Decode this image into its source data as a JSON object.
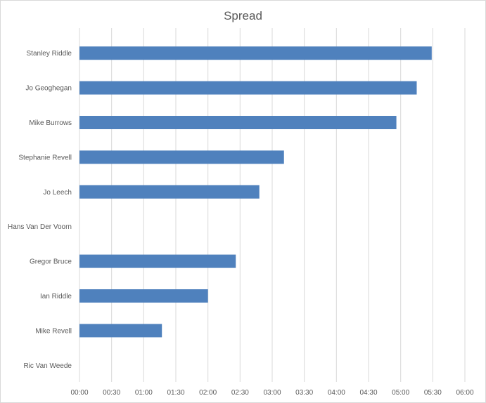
{
  "chart_data": {
    "type": "bar",
    "orientation": "horizontal",
    "title": "Spread",
    "xlabel": "",
    "ylabel": "",
    "categories": [
      "Stanley Riddle",
      "Jo Geoghegan",
      "Mike Burrows",
      "Stephanie Revell",
      "Jo Leech",
      "Hans Van Der  Voorn",
      "Gregor Bruce",
      "Ian Riddle",
      "Mike Revell",
      "Ric Van Weede"
    ],
    "values_minutes": [
      329,
      315,
      296,
      191,
      168,
      0,
      146,
      120,
      77,
      0
    ],
    "xlim_minutes": [
      0,
      360
    ],
    "x_ticks": [
      "00:00",
      "00:30",
      "01:00",
      "01:30",
      "02:00",
      "02:30",
      "03:00",
      "03:30",
      "04:00",
      "04:30",
      "05:00",
      "05:30",
      "06:00"
    ],
    "grid": "vertical",
    "bar_color": "#4f81bd",
    "grid_color": "#d9d9d9"
  }
}
